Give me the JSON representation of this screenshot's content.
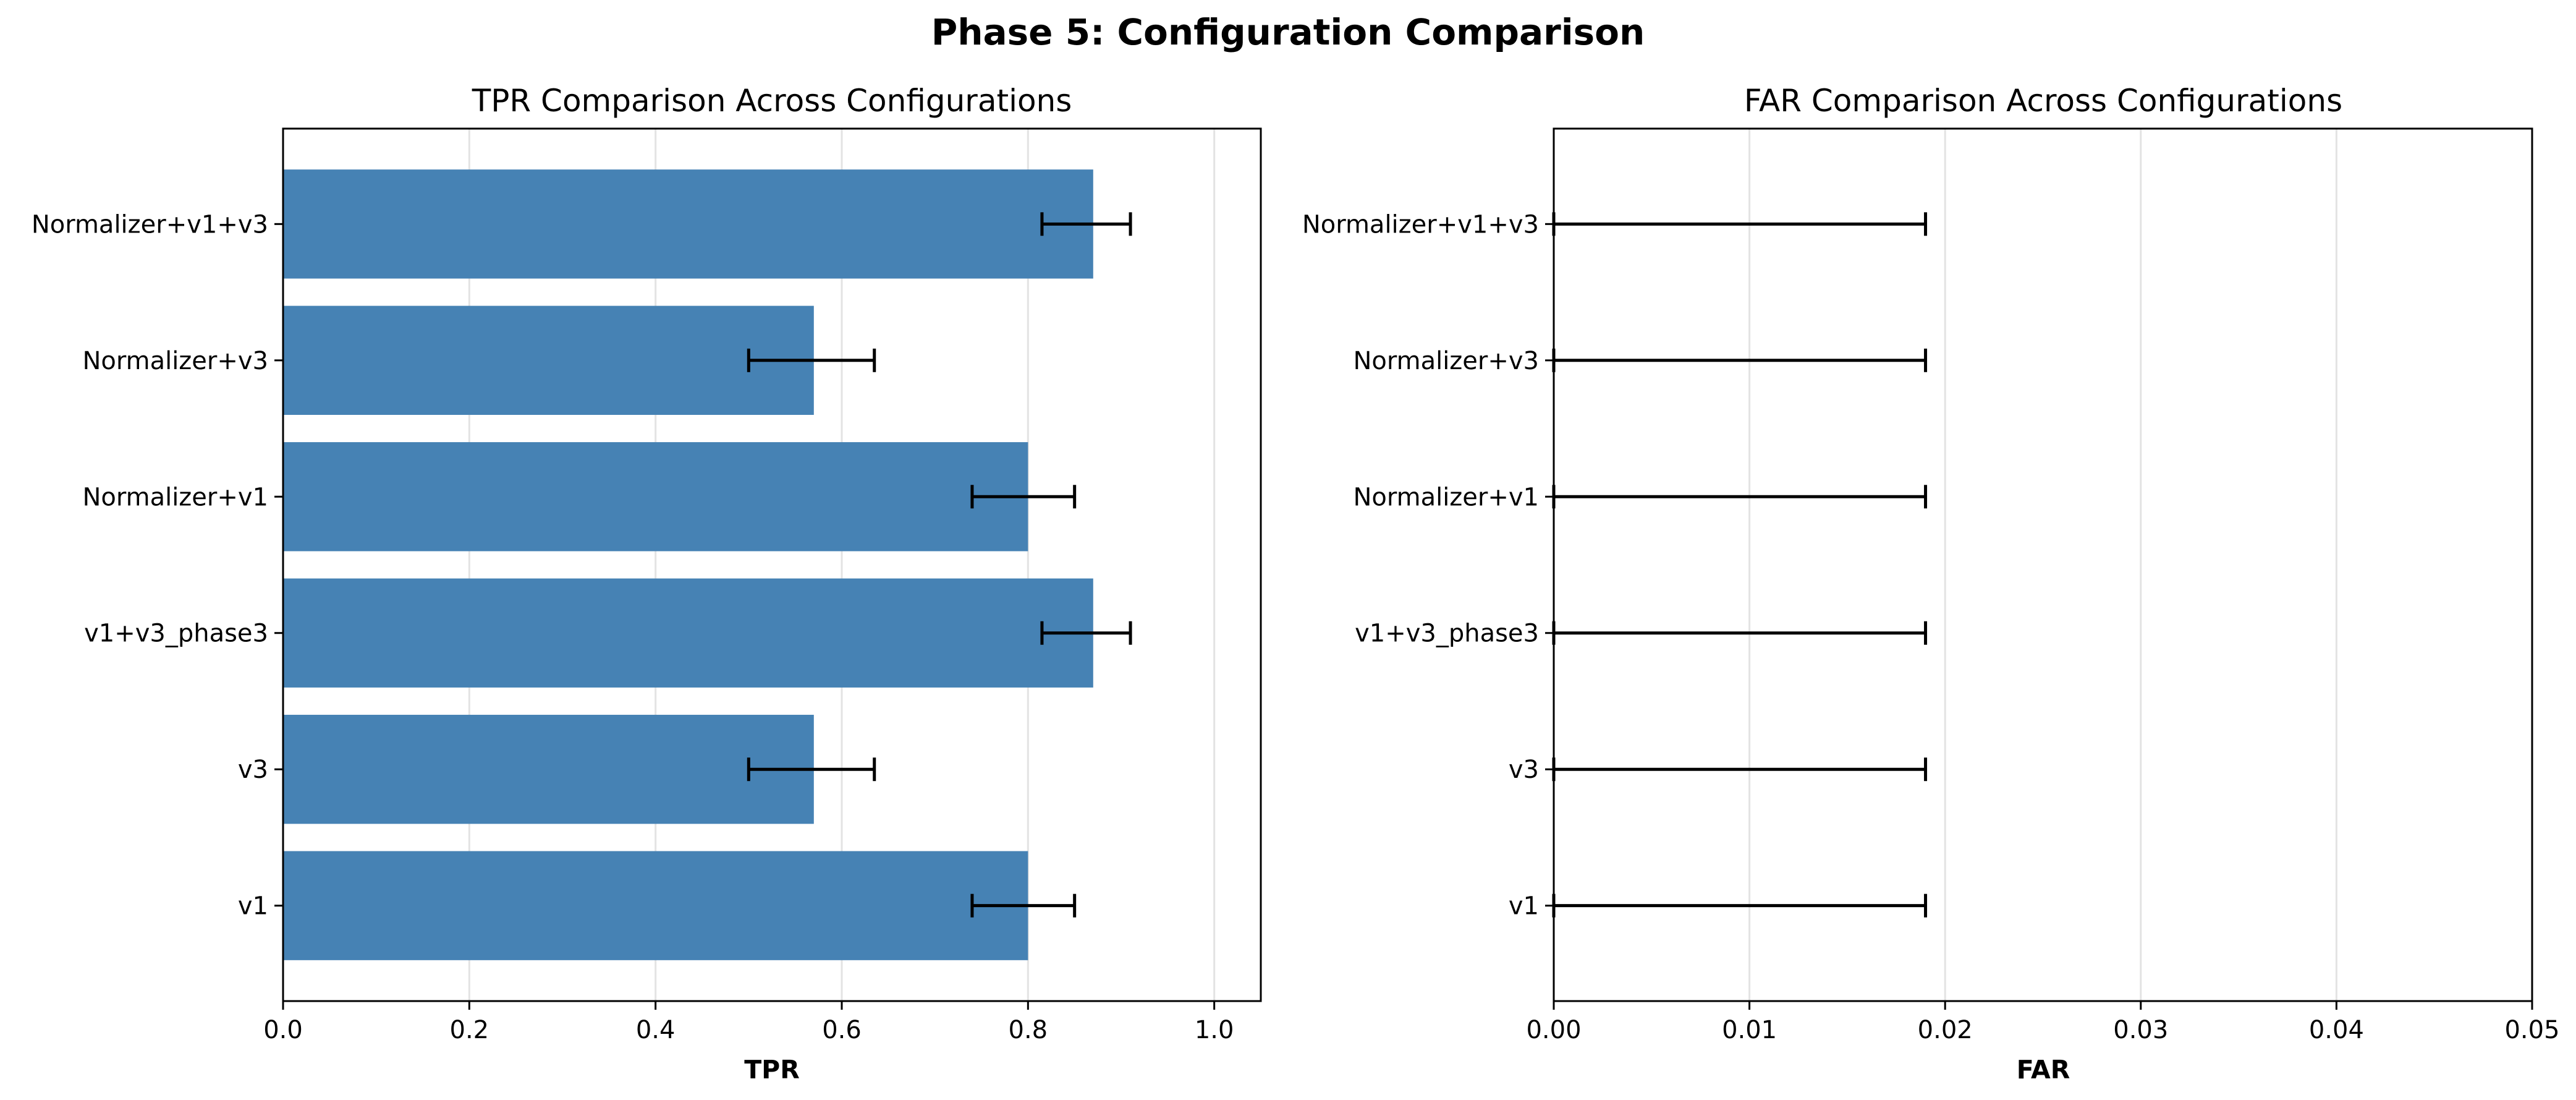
{
  "figure": {
    "suptitle": "Phase 5: Configuration Comparison"
  },
  "chart_data": [
    {
      "type": "bar",
      "orientation": "horizontal",
      "title": "TPR Comparison Across Configurations",
      "xlabel": "TPR",
      "ylabel": "",
      "categories": [
        "v1",
        "v3",
        "v1+v3_phase3",
        "Normalizer+v1",
        "Normalizer+v3",
        "Normalizer+v1+v3"
      ],
      "values": [
        0.8,
        0.57,
        0.87,
        0.8,
        0.57,
        0.87
      ],
      "error_low": [
        0.74,
        0.5,
        0.815,
        0.74,
        0.5,
        0.815
      ],
      "error_high": [
        0.85,
        0.635,
        0.91,
        0.85,
        0.635,
        0.91
      ],
      "xlim": [
        0.0,
        1.05
      ],
      "xticks": [
        0.0,
        0.2,
        0.4,
        0.6,
        0.8,
        1.0
      ],
      "xtick_labels": [
        "0.0",
        "0.2",
        "0.4",
        "0.6",
        "0.8",
        "1.0"
      ],
      "grid": "x",
      "bar_color": "#4682b4"
    },
    {
      "type": "bar",
      "orientation": "horizontal",
      "title": "FAR Comparison Across Configurations",
      "xlabel": "FAR",
      "ylabel": "",
      "categories": [
        "v1",
        "v3",
        "v1+v3_phase3",
        "Normalizer+v1",
        "Normalizer+v3",
        "Normalizer+v1+v3"
      ],
      "values": [
        0.0,
        0.0,
        0.0,
        0.0,
        0.0,
        0.0
      ],
      "error_low": [
        0.0,
        0.0,
        0.0,
        0.0,
        0.0,
        0.0
      ],
      "error_high": [
        0.019,
        0.019,
        0.019,
        0.019,
        0.019,
        0.019
      ],
      "xlim": [
        0.0,
        0.05
      ],
      "xticks": [
        0.0,
        0.01,
        0.02,
        0.03,
        0.04,
        0.05
      ],
      "xtick_labels": [
        "0.00",
        "0.01",
        "0.02",
        "0.03",
        "0.04",
        "0.05"
      ],
      "grid": "x",
      "bar_color": "#d9534f"
    }
  ]
}
